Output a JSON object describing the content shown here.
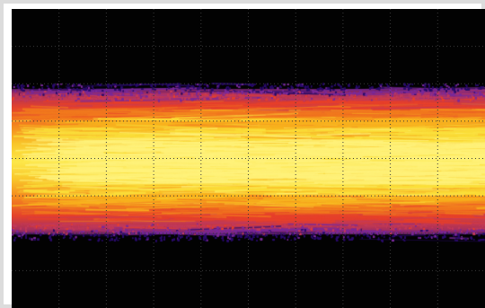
{
  "scope": {
    "screen_background": "#020202",
    "frame_color": "#dcdcdc",
    "grid": {
      "visible": true,
      "divisions_x": 10,
      "divisions_y": 8,
      "color": "#3a3a3a"
    },
    "persistence_palette": [
      "#2a0c6a",
      "#7a2a9a",
      "#c23a5a",
      "#e8402a",
      "#f27a1e",
      "#f8b21e",
      "#fbe03a",
      "#fff27a"
    ]
  }
}
